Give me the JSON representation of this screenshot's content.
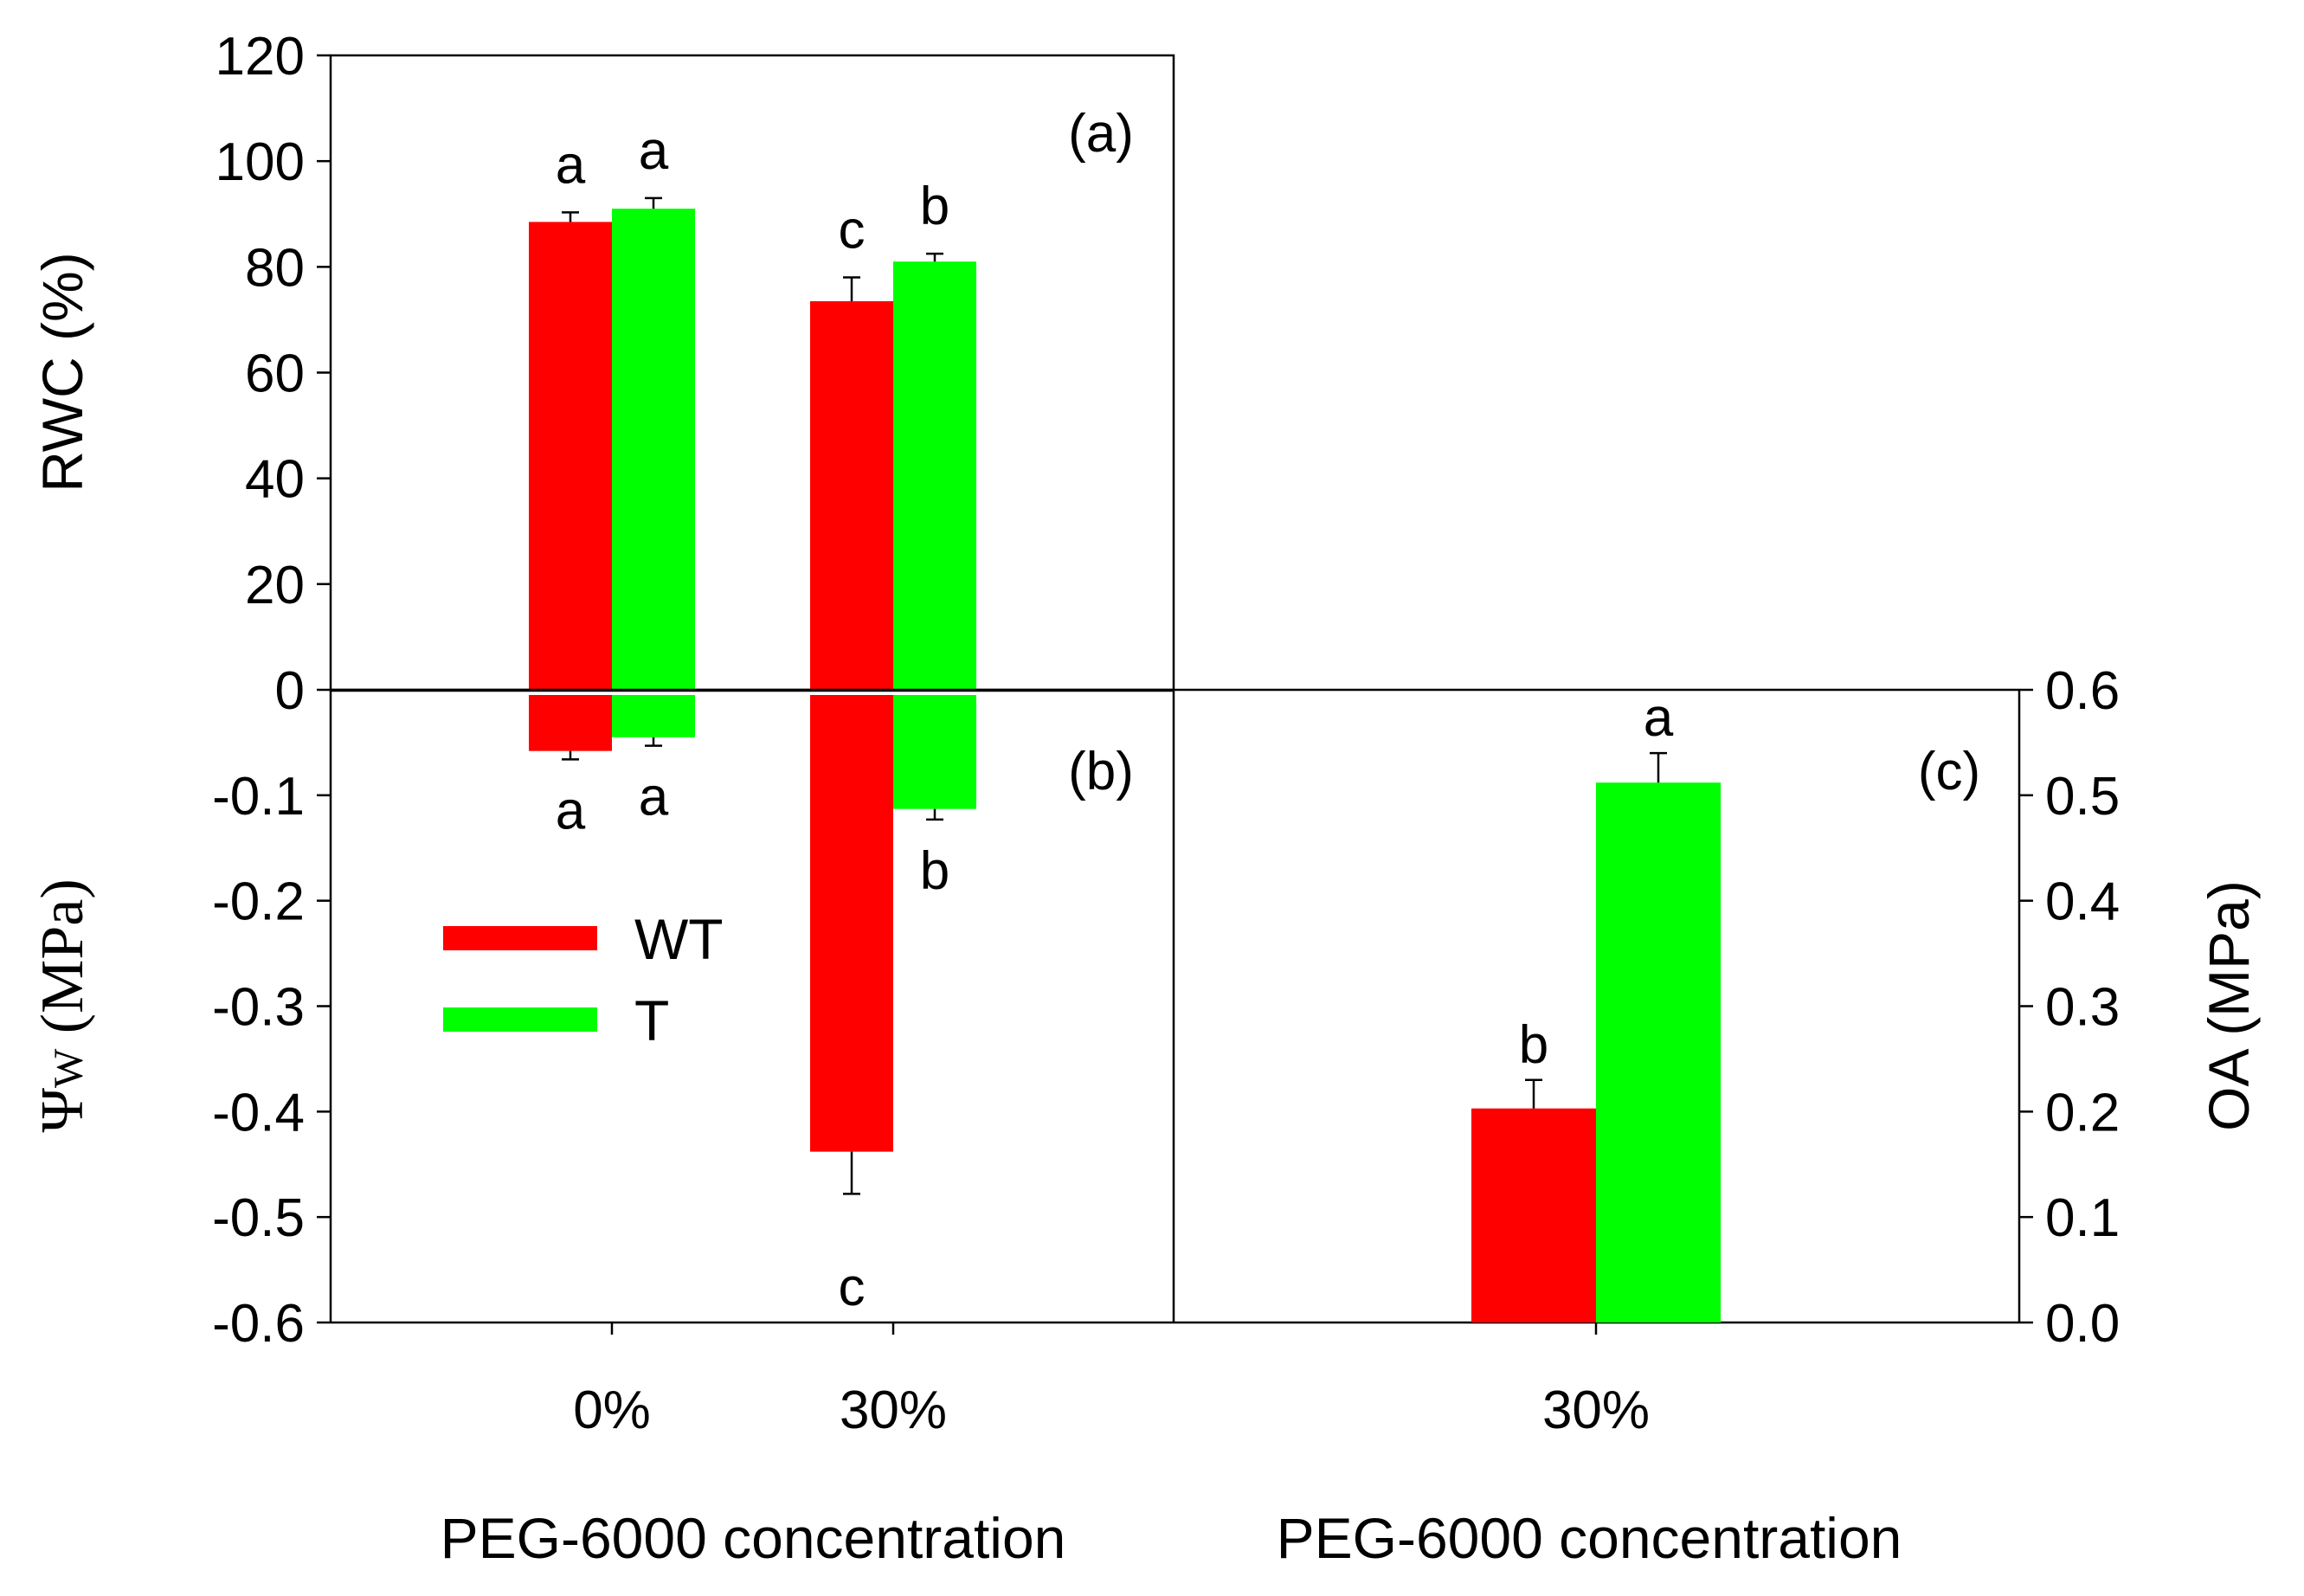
{
  "colors": {
    "WT": "#ff0000",
    "T": "#00ff00",
    "axis": "#000000"
  },
  "chart_data": [
    {
      "panel": "(a)",
      "type": "bar",
      "ylabel": "RWC (%)",
      "ylim": [
        0,
        120
      ],
      "yticks": [
        "0",
        "20",
        "40",
        "60",
        "80",
        "100",
        "120"
      ],
      "categories": [
        "0%",
        "30%"
      ],
      "series": [
        {
          "name": "WT",
          "values": [
            88.5,
            73.5
          ],
          "errors": [
            1.8,
            4.5
          ],
          "letters": [
            "a",
            "c"
          ]
        },
        {
          "name": "T",
          "values": [
            91,
            81
          ],
          "errors": [
            2,
            1.5
          ],
          "letters": [
            "a",
            "b"
          ]
        }
      ]
    },
    {
      "panel": "(b)",
      "type": "bar",
      "ylabel": "ΨW (MPa)",
      "ylim": [
        -0.6,
        0
      ],
      "yticks": [
        "-0.6",
        "-0.5",
        "-0.4",
        "-0.3",
        "-0.2",
        "-0.1"
      ],
      "categories": [
        "0%",
        "30%"
      ],
      "xlabel": "PEG-6000 concentration",
      "series": [
        {
          "name": "WT",
          "values": [
            -0.058,
            -0.438
          ],
          "errors": [
            0.008,
            0.04
          ],
          "letters": [
            "a",
            "c"
          ]
        },
        {
          "name": "T",
          "values": [
            -0.045,
            -0.113
          ],
          "errors": [
            0.008,
            0.01
          ],
          "letters": [
            "a",
            "b"
          ]
        }
      ],
      "legend": {
        "position": "left-middle",
        "entries": [
          "WT",
          "T"
        ]
      }
    },
    {
      "panel": "(c)",
      "type": "bar",
      "ylabel": "OA (MPa)",
      "ylim": [
        0,
        0.6
      ],
      "yticks": [
        "0.0",
        "0.1",
        "0.2",
        "0.3",
        "0.4",
        "0.5",
        "0.6"
      ],
      "categories": [
        "30%"
      ],
      "xlabel": "PEG-6000 concentration",
      "series": [
        {
          "name": "WT",
          "values": [
            0.203
          ],
          "errors": [
            0.027
          ],
          "letters": [
            "b"
          ]
        },
        {
          "name": "T",
          "values": [
            0.512
          ],
          "errors": [
            0.028
          ],
          "letters": [
            "a"
          ]
        }
      ]
    }
  ]
}
